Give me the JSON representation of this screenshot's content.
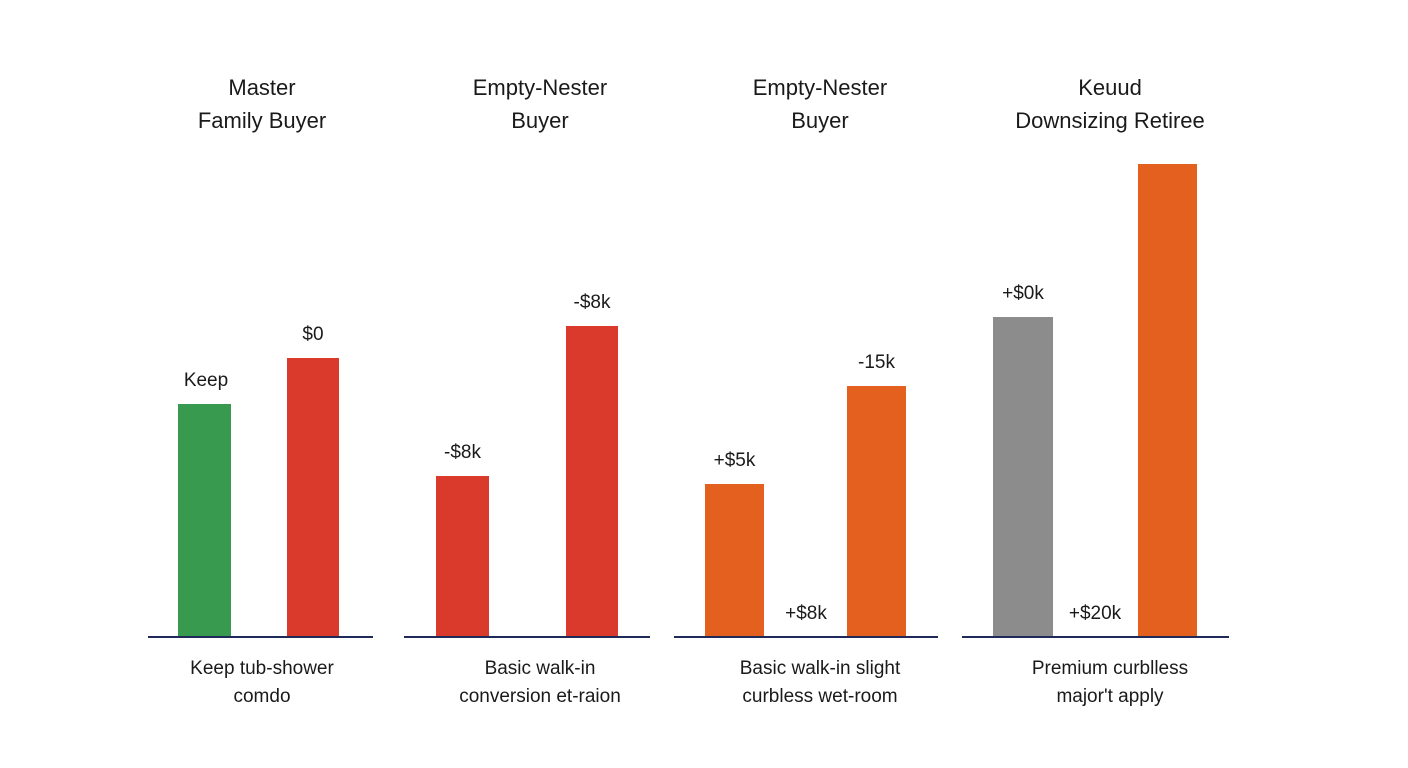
{
  "chart_data": {
    "type": "bar",
    "groups": [
      {
        "title": [
          "Master",
          "Family Buyer"
        ],
        "caption": [
          "Keep tub-shower",
          "comdo"
        ],
        "bars": [
          {
            "value": 233,
            "label": "Keep",
            "color": "#379a4f"
          },
          {
            "value": 279,
            "label": "$0",
            "color": "#d93a2b"
          }
        ]
      },
      {
        "title": [
          "Empty-Nester",
          "Buyer"
        ],
        "caption": [
          "Basic walk-in",
          "conversion et-raion"
        ],
        "bars": [
          {
            "value": 161,
            "label": "-$8k",
            "color": "#d93a2b"
          },
          {
            "value": 311,
            "label": "-$8k",
            "color": "#d93a2b"
          }
        ]
      },
      {
        "title": [
          "Empty-Nester",
          "Buyer"
        ],
        "caption": [
          "Basic walk-in slight",
          "curbless wet-room"
        ],
        "bars": [
          {
            "value": 153,
            "label": "+$5k",
            "color": "#e4601f"
          },
          {
            "value": 0,
            "label": "+$8k",
            "color": "#e4601f"
          },
          {
            "value": 251,
            "label": "-15k",
            "color": "#e4601f"
          }
        ]
      },
      {
        "title": [
          "Keuud",
          "Downsizing Retiree"
        ],
        "caption": [
          "Premium curblless",
          "major't apply"
        ],
        "bars": [
          {
            "value": 320,
            "label": "+$0k",
            "color": "#8c8c8c"
          },
          {
            "value": 0,
            "label": "+$20k",
            "color": "#e4601f"
          },
          {
            "value": 473,
            "label": "",
            "color": "#e4601f"
          }
        ]
      }
    ],
    "axis_color": "#1f2a5a",
    "ylim": [
      0,
      480
    ],
    "grid": false,
    "legend": "none"
  }
}
